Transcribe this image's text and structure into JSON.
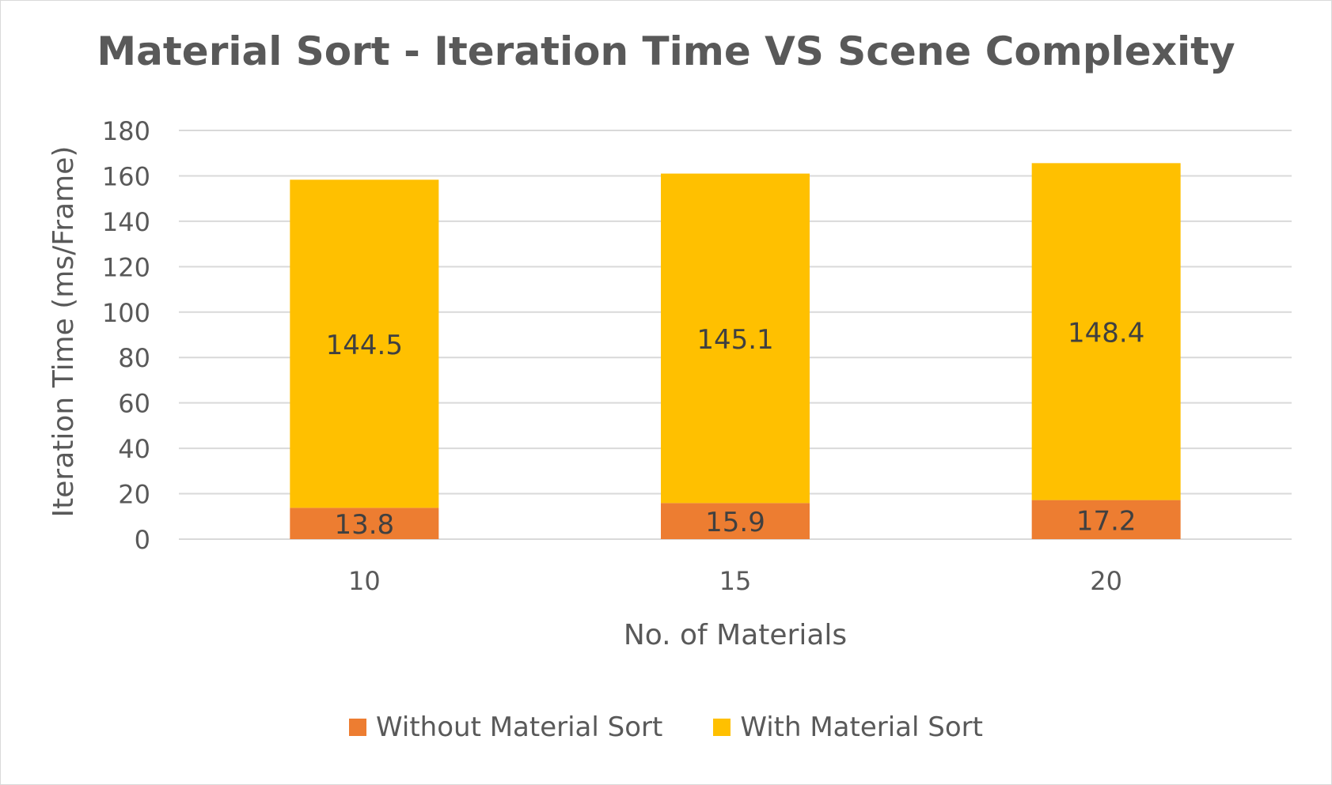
{
  "chart_data": {
    "type": "bar",
    "stacked": true,
    "title": "Material Sort - Iteration Time VS Scene Complexity",
    "xlabel": "No. of Materials",
    "ylabel": "Iteration Time (ms/Frame)",
    "categories": [
      "10",
      "15",
      "20"
    ],
    "ylim": [
      0,
      180
    ],
    "yticks": [
      "0",
      "20",
      "40",
      "60",
      "80",
      "100",
      "120",
      "140",
      "160",
      "180"
    ],
    "grid": true,
    "legend_position": "bottom",
    "series": [
      {
        "name": "Without Material Sort",
        "values": [
          13.8,
          15.9,
          17.2
        ],
        "labels": [
          "13.8",
          "15.9",
          "17.2"
        ],
        "color": "#ED7D31"
      },
      {
        "name": "With Material Sort",
        "values": [
          144.5,
          145.1,
          148.4
        ],
        "labels": [
          "144.5",
          "145.1",
          "148.4"
        ],
        "color": "#FFC000"
      }
    ]
  }
}
